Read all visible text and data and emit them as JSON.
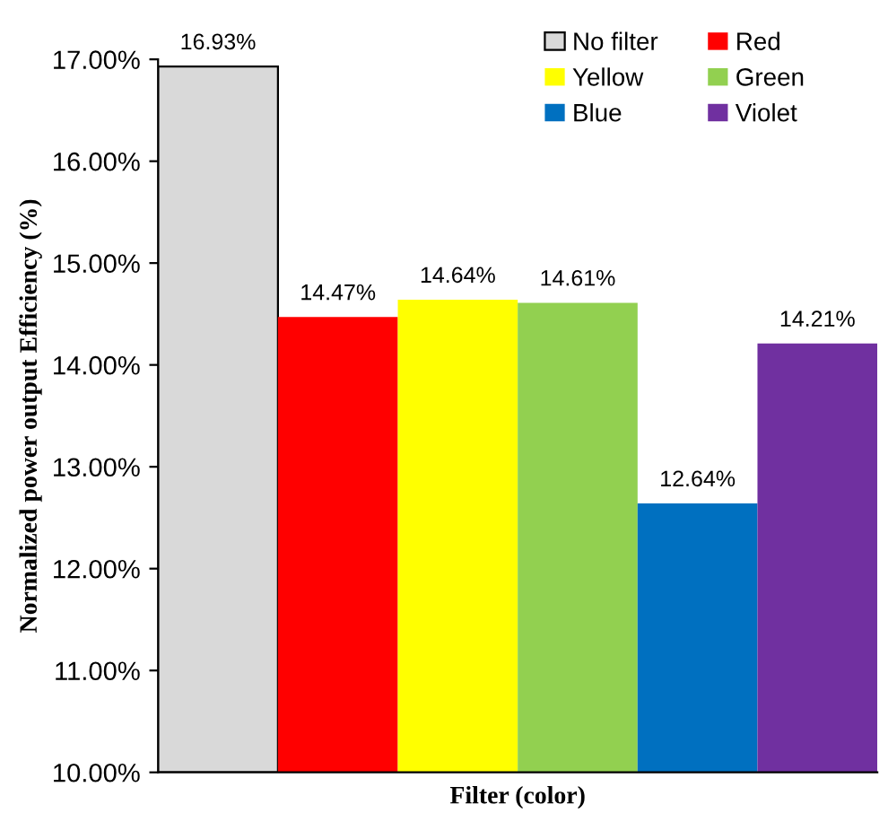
{
  "chart_data": {
    "type": "bar",
    "xlabel": "Filter (color)",
    "ylabel": "Normalized power output Efficiency (%)",
    "categories": [
      null,
      null,
      null,
      null,
      null,
      null
    ],
    "series": [
      {
        "name": "No filter",
        "color": "#d9d9d9",
        "values": [
          16.93,
          null,
          null,
          null,
          null,
          null
        ],
        "value_labels": [
          "16.93%",
          null,
          null,
          null,
          null,
          null
        ]
      },
      {
        "name": "Red",
        "color": "#ff0000",
        "values": [
          null,
          14.47,
          null,
          null,
          null,
          null
        ],
        "value_labels": [
          null,
          "14.47%",
          null,
          null,
          null,
          null
        ]
      },
      {
        "name": "Yellow",
        "color": "#ffff00",
        "values": [
          null,
          null,
          14.64,
          null,
          null,
          null
        ],
        "value_labels": [
          null,
          null,
          "14.64%",
          null,
          null,
          null
        ]
      },
      {
        "name": "Green",
        "color": "#92d050",
        "values": [
          null,
          null,
          null,
          14.61,
          null,
          null
        ],
        "value_labels": [
          null,
          null,
          null,
          "14.61%",
          null,
          null
        ]
      },
      {
        "name": "Blue",
        "color": "#0070c0",
        "values": [
          null,
          null,
          null,
          null,
          12.64,
          null
        ],
        "value_labels": [
          null,
          null,
          null,
          null,
          "12.64%",
          null
        ]
      },
      {
        "name": "Violet",
        "color": "#7030a0",
        "values": [
          null,
          null,
          null,
          null,
          null,
          14.21
        ],
        "value_labels": [
          null,
          null,
          null,
          null,
          null,
          "14.21%"
        ]
      }
    ],
    "ylim": [
      10,
      17
    ],
    "yticks": [
      {
        "value": 10,
        "label": "10.00%"
      },
      {
        "value": 11,
        "label": "11.00%"
      },
      {
        "value": 12,
        "label": "12.00%"
      },
      {
        "value": 13,
        "label": "13.00%"
      },
      {
        "value": 14,
        "label": "14.00%"
      },
      {
        "value": 15,
        "label": "15.00%"
      },
      {
        "value": 16,
        "label": "16.00%"
      },
      {
        "value": 17,
        "label": "17.00%"
      }
    ],
    "grid": false,
    "legend": "top right"
  }
}
